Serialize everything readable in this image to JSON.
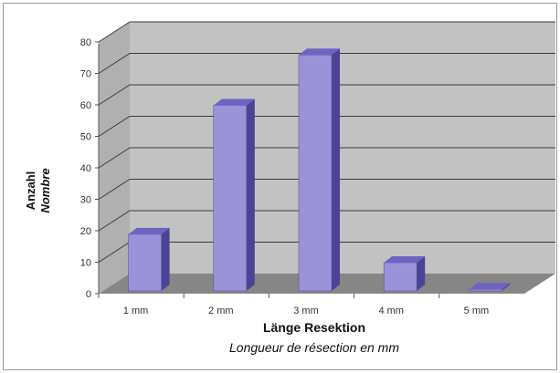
{
  "chart_data": {
    "type": "bar",
    "categories": [
      "1 mm",
      "2 mm",
      "3 mm",
      "4 mm",
      "5 mm"
    ],
    "values": [
      18,
      59,
      75,
      9,
      0.5
    ],
    "ylim": [
      0,
      80
    ],
    "yticks": [
      0,
      10,
      20,
      30,
      40,
      50,
      60,
      70,
      80
    ],
    "ylabel": [
      "Anzahl",
      "Nombre"
    ],
    "xlabel": [
      "Länge Resektion",
      "Longueur de résection en mm"
    ],
    "grid": true,
    "legend": "none"
  },
  "colors": {
    "bar_front": "#9b93d9",
    "bar_side": "#4b4494",
    "bar_top": "#6c64bf",
    "wall": "#c2c2c2",
    "floor": "#868686",
    "gridline": "#3a3a3a"
  }
}
